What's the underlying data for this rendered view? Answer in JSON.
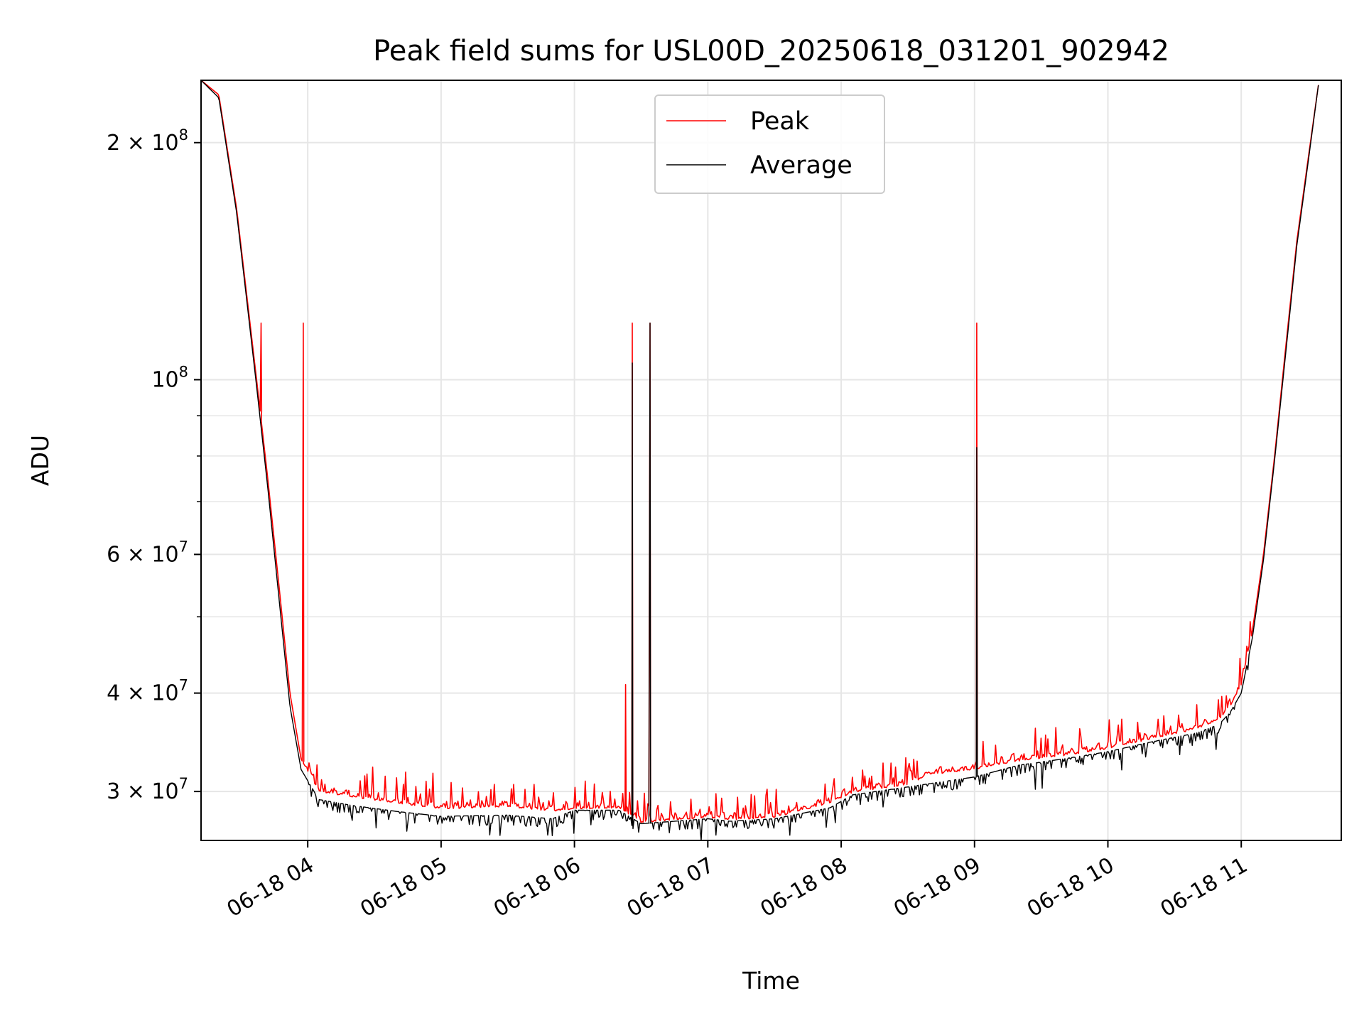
{
  "chart_data": {
    "type": "line",
    "title": "Peak field sums for USL00D_20250618_031201_902942",
    "xlabel": "Time",
    "ylabel": "ADU",
    "y_scale": "log",
    "grid": true,
    "legend_position": "top-center",
    "xlim": [
      "2025-06-18T03:12",
      "2025-06-18T11:45"
    ],
    "ylim": [
      26000000,
      240000000
    ],
    "x_ticks": [
      {
        "value": "2025-06-18T04:00",
        "label": "06-18 04"
      },
      {
        "value": "2025-06-18T05:00",
        "label": "06-18 05"
      },
      {
        "value": "2025-06-18T06:00",
        "label": "06-18 06"
      },
      {
        "value": "2025-06-18T07:00",
        "label": "06-18 07"
      },
      {
        "value": "2025-06-18T08:00",
        "label": "06-18 08"
      },
      {
        "value": "2025-06-18T09:00",
        "label": "06-18 09"
      },
      {
        "value": "2025-06-18T10:00",
        "label": "06-18 10"
      },
      {
        "value": "2025-06-18T11:00",
        "label": "06-18 11"
      }
    ],
    "y_ticks": [
      {
        "value": 30000000,
        "base": "3 × 10",
        "exp": "7"
      },
      {
        "value": 40000000,
        "base": "4 × 10",
        "exp": "7"
      },
      {
        "value": 60000000,
        "base": "6 × 10",
        "exp": "7"
      },
      {
        "value": 100000000,
        "base": "10",
        "exp": "8"
      },
      {
        "value": 200000000,
        "base": "2 × 10",
        "exp": "8"
      }
    ],
    "y_minor_ticks": [
      50000000,
      70000000,
      80000000,
      90000000
    ],
    "series": [
      {
        "name": "Peak",
        "color": "#ff0000",
        "baseline_x": [
          "2025-06-18T03:12",
          "2025-06-18T03:20",
          "2025-06-18T03:28",
          "2025-06-18T03:33",
          "2025-06-18T03:37",
          "2025-06-18T03:42",
          "2025-06-18T03:47",
          "2025-06-18T03:52",
          "2025-06-18T03:57",
          "2025-06-18T04:05",
          "2025-06-18T04:20",
          "2025-06-18T04:40",
          "2025-06-18T05:00",
          "2025-06-18T05:30",
          "2025-06-18T05:50",
          "2025-06-18T06:00",
          "2025-06-18T06:20",
          "2025-06-18T06:30",
          "2025-06-18T06:45",
          "2025-06-18T07:00",
          "2025-06-18T07:10",
          "2025-06-18T07:30",
          "2025-06-18T07:55",
          "2025-06-18T08:05",
          "2025-06-18T08:30",
          "2025-06-18T08:40",
          "2025-06-18T09:00",
          "2025-06-18T09:20",
          "2025-06-18T09:40",
          "2025-06-18T10:00",
          "2025-06-18T10:20",
          "2025-06-18T10:40",
          "2025-06-18T10:50",
          "2025-06-18T10:55",
          "2025-06-18T11:00",
          "2025-06-18T11:05",
          "2025-06-18T11:10",
          "2025-06-18T11:15",
          "2025-06-18T11:20",
          "2025-06-18T11:25",
          "2025-06-18T11:30",
          "2025-06-18T11:35"
        ],
        "baseline_y": [
          240000000,
          230000000,
          165000000,
          125000000,
          100000000,
          75000000,
          55000000,
          40000000,
          33000000,
          30000000,
          29500000,
          29000000,
          28500000,
          28700000,
          28300000,
          28500000,
          28600000,
          27400000,
          27600000,
          27800000,
          27600000,
          27800000,
          29000000,
          29900000,
          30600000,
          31500000,
          32000000,
          32800000,
          33300000,
          34000000,
          35000000,
          36000000,
          37000000,
          38500000,
          41000000,
          48000000,
          60000000,
          80000000,
          110000000,
          150000000,
          190000000,
          240000000
        ],
        "spikes": [
          {
            "x": "2025-06-18T03:39",
            "y": 118000000
          },
          {
            "x": "2025-06-18T03:58",
            "y": 118000000
          },
          {
            "x": "2025-06-18T06:23",
            "y": 41000000
          },
          {
            "x": "2025-06-18T06:26",
            "y": 118000000
          },
          {
            "x": "2025-06-18T06:34",
            "y": 118000000
          },
          {
            "x": "2025-06-18T09:01",
            "y": 118000000
          }
        ]
      },
      {
        "name": "Average",
        "color": "#000000",
        "baseline_x": [
          "2025-06-18T03:12",
          "2025-06-18T03:20",
          "2025-06-18T03:28",
          "2025-06-18T03:33",
          "2025-06-18T03:37",
          "2025-06-18T03:42",
          "2025-06-18T03:47",
          "2025-06-18T03:52",
          "2025-06-18T03:57",
          "2025-06-18T04:05",
          "2025-06-18T04:20",
          "2025-06-18T04:40",
          "2025-06-18T05:00",
          "2025-06-18T05:30",
          "2025-06-18T05:50",
          "2025-06-18T06:00",
          "2025-06-18T06:20",
          "2025-06-18T06:30",
          "2025-06-18T06:45",
          "2025-06-18T07:00",
          "2025-06-18T07:10",
          "2025-06-18T07:30",
          "2025-06-18T07:55",
          "2025-06-18T08:05",
          "2025-06-18T08:30",
          "2025-06-18T08:40",
          "2025-06-18T09:00",
          "2025-06-18T09:20",
          "2025-06-18T09:40",
          "2025-06-18T10:00",
          "2025-06-18T10:20",
          "2025-06-18T10:40",
          "2025-06-18T10:50",
          "2025-06-18T10:55",
          "2025-06-18T11:00",
          "2025-06-18T11:05",
          "2025-06-18T11:10",
          "2025-06-18T11:15",
          "2025-06-18T11:20",
          "2025-06-18T11:25",
          "2025-06-18T11:30",
          "2025-06-18T11:35"
        ],
        "baseline_y": [
          240000000,
          228000000,
          163000000,
          123000000,
          98000000,
          73000000,
          53000000,
          38500000,
          32000000,
          29300000,
          28800000,
          28300000,
          27900000,
          28000000,
          27700000,
          28400000,
          28400000,
          27300000,
          27500000,
          27700000,
          27500000,
          27700000,
          28600000,
          29700000,
          30400000,
          30700000,
          31300000,
          32400000,
          33000000,
          33700000,
          34700000,
          35600000,
          36500000,
          37800000,
          40000000,
          47000000,
          59000000,
          79000000,
          108000000,
          148000000,
          188000000,
          240000000
        ],
        "spikes": [
          {
            "x": "2025-06-18T06:26",
            "y": 105000000
          },
          {
            "x": "2025-06-18T06:34",
            "y": 118000000
          },
          {
            "x": "2025-06-18T09:01",
            "y": 82000000
          }
        ]
      }
    ]
  }
}
